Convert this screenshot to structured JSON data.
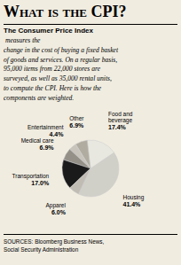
{
  "chart_data": {
    "type": "pie",
    "title": "What is the CPI?",
    "subtitle": "The Consumer Price Index",
    "annotations": [
      " measures the\nchange in the cost of buying a fixed basket\nof goods and services. On a regular basis,\n95,000 items from 22,000 stores are\nsurveyed, as well as 35,000 rental units,\nto compute the CPI. Here is how the\ncomponents are weighted.",
      "SOURCES: Bloomberg Business News,\nSocial Security Administration"
    ],
    "categories": [
      "Housing",
      "Food and\nbeverage",
      "Other",
      "Entertainment",
      "Medical care",
      "Transportation",
      "Apparel"
    ],
    "values": [
      41.4,
      17.4,
      6.9,
      4.4,
      6.9,
      17.0,
      6.0
    ],
    "value_labels": [
      "41.4%",
      "17.4%",
      "6.9%",
      "4.4%",
      "6.9%",
      "17.0%",
      "6.0%"
    ],
    "colors": [
      "#d0cfc8",
      "#e8e8e0",
      "#b0aca0",
      "#c8c4bc",
      "#949088",
      "#1a1a1a",
      "#c0bcb4"
    ],
    "data_labels": true
  }
}
